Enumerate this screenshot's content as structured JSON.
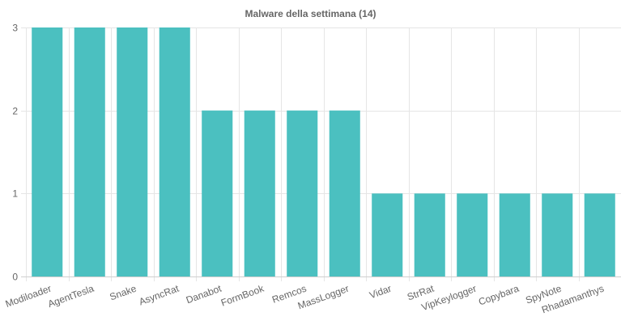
{
  "chart_data": {
    "type": "bar",
    "title": "Malware della settimana (14)",
    "categories": [
      "Modiloader",
      "AgentTesla",
      "Snake",
      "AsyncRat",
      "Danabot",
      "FormBook",
      "Remcos",
      "MassLogger",
      "Vidar",
      "StrRat",
      "VipKeylogger",
      "Copybara",
      "SpyNote",
      "Rhadamanthys"
    ],
    "values": [
      3,
      3,
      3,
      3,
      2,
      2,
      2,
      2,
      1,
      1,
      1,
      1,
      1,
      1
    ],
    "xlabel": "",
    "ylabel": "",
    "ylim": [
      0,
      3
    ],
    "yticks": [
      "0",
      "1",
      "2",
      "3"
    ],
    "grid": true,
    "legend": "none",
    "colors": {
      "bar": "#4bc0c0",
      "grid": "#e5e5e5",
      "text": "#666666"
    }
  }
}
